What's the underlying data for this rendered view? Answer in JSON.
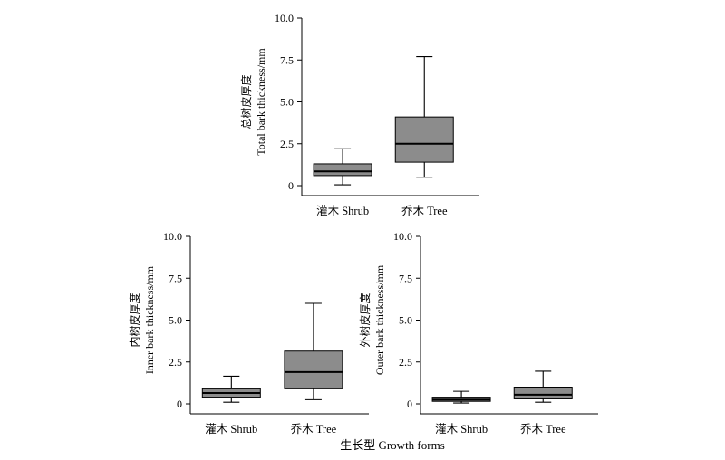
{
  "chart_data": [
    {
      "type": "boxplot",
      "ylabel_zh": "总树皮厚度",
      "ylabel_en": "Total bark thickness/mm",
      "ylim": [
        0,
        10
      ],
      "yticks": [
        "0",
        "2.5",
        "5.0",
        "7.5",
        "10.0"
      ],
      "categories": [
        "灌木 Shrub",
        "乔木 Tree"
      ],
      "boxes": [
        {
          "min": 0.05,
          "q1": 0.6,
          "median": 0.85,
          "q3": 1.3,
          "max": 2.2
        },
        {
          "min": 0.5,
          "q1": 1.4,
          "median": 2.5,
          "q3": 4.1,
          "max": 7.7
        }
      ]
    },
    {
      "type": "boxplot",
      "ylabel_zh": "内树皮厚度",
      "ylabel_en": "Inner bark thickness/mm",
      "ylim": [
        0,
        10
      ],
      "yticks": [
        "0",
        "2.5",
        "5.0",
        "7.5",
        "10.0"
      ],
      "categories": [
        "灌木 Shrub",
        "乔木 Tree"
      ],
      "boxes": [
        {
          "min": 0.1,
          "q1": 0.4,
          "median": 0.65,
          "q3": 0.9,
          "max": 1.65
        },
        {
          "min": 0.25,
          "q1": 0.9,
          "median": 1.9,
          "q3": 3.15,
          "max": 6.0
        }
      ]
    },
    {
      "type": "boxplot",
      "ylabel_zh": "外树皮厚度",
      "ylabel_en": "Outer bark thickness/mm",
      "ylim": [
        0,
        10
      ],
      "yticks": [
        "0",
        "2.5",
        "5.0",
        "7.5",
        "10.0"
      ],
      "categories": [
        "灌木 Shrub",
        "乔木 Tree"
      ],
      "boxes": [
        {
          "min": 0.05,
          "q1": 0.15,
          "median": 0.25,
          "q3": 0.4,
          "max": 0.75
        },
        {
          "min": 0.1,
          "q1": 0.3,
          "median": 0.55,
          "q3": 1.0,
          "max": 1.95
        }
      ]
    }
  ],
  "xlabel": "生长型 Growth forms",
  "colors": {
    "box_fill": "#8c8c8c",
    "line": "#000000"
  }
}
